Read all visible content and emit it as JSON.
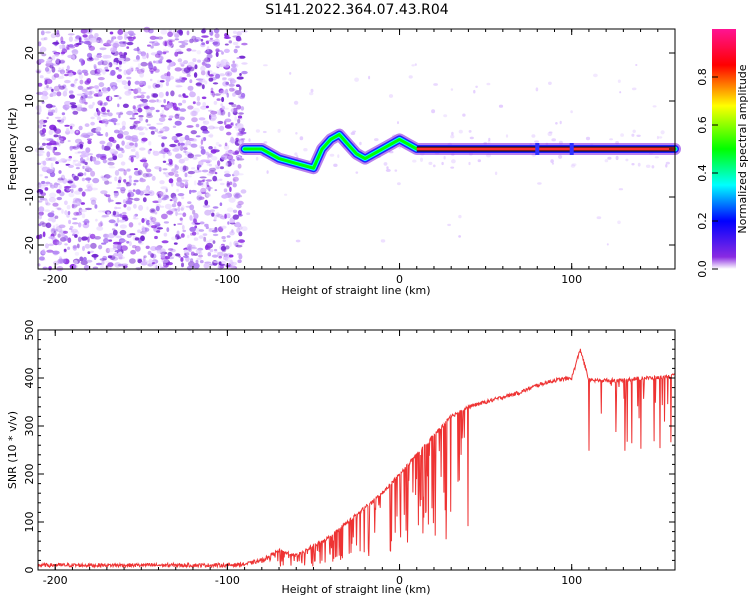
{
  "title": "S141.2022.364.07.43.R04",
  "colors": {
    "snr_line": "#ee3333",
    "spectrogram_noise": "#8a2be2",
    "signal_core": "#ff3030",
    "signal_edge": "#2222ff",
    "frame": "#000000"
  },
  "chart_data": [
    {
      "type": "heatmap",
      "title": "",
      "xlabel": "Height of straight line (km)",
      "ylabel": "Frequency (Hz)",
      "xlim": [
        -210,
        160
      ],
      "ylim": [
        -25,
        25
      ],
      "xticks": [
        -200,
        -100,
        0,
        100
      ],
      "yticks": [
        -20,
        -10,
        0,
        10,
        20
      ],
      "colorbar": {
        "label": "Normalized spectral amplitude",
        "range": [
          0,
          1
        ],
        "ticks": [
          "0.0",
          "0.2",
          "0.4",
          "0.6",
          "0.8"
        ],
        "colormap": [
          "#ffffff",
          "#8a2be2",
          "#0000ff",
          "#00ffff",
          "#00ff00",
          "#ffff00",
          "#ff0000",
          "#ff1493"
        ]
      },
      "noise_region": {
        "x": [
          -210,
          -90
        ],
        "amplitude": 0.15
      },
      "signal_track": {
        "x": [
          -90,
          -80,
          -70,
          -60,
          -50,
          -45,
          -40,
          -35,
          -30,
          -25,
          -20,
          -15,
          -10,
          -5,
          0,
          5,
          10,
          30,
          60,
          80,
          100,
          130,
          160
        ],
        "y": [
          0,
          0,
          -2,
          -3,
          -4,
          0,
          2,
          3,
          1,
          -1,
          -2,
          -1,
          0,
          1,
          2,
          1,
          0,
          0,
          0,
          0,
          0,
          0,
          0
        ]
      }
    },
    {
      "type": "line",
      "title": "",
      "xlabel": "Height of straight line (km)",
      "ylabel": "SNR (10 * v/v)",
      "xlim": [
        -210,
        160
      ],
      "ylim": [
        0,
        500
      ],
      "xticks": [
        -200,
        -100,
        0,
        100
      ],
      "yticks": [
        0,
        100,
        200,
        300,
        400,
        500
      ],
      "series": [
        {
          "x": [
            -210,
            -180,
            -150,
            -120,
            -100,
            -90,
            -80,
            -70,
            -60,
            -50,
            -40,
            -30,
            -20,
            -10,
            0,
            10,
            20,
            30,
            40,
            50,
            60,
            70,
            80,
            90,
            100,
            105,
            110,
            120,
            130,
            140,
            150,
            160
          ],
          "values": [
            10,
            10,
            10,
            10,
            10,
            12,
            20,
            40,
            30,
            50,
            70,
            100,
            130,
            160,
            200,
            240,
            280,
            320,
            340,
            350,
            360,
            370,
            385,
            395,
            400,
            460,
            395,
            395,
            395,
            400,
            400,
            405
          ]
        }
      ]
    }
  ]
}
